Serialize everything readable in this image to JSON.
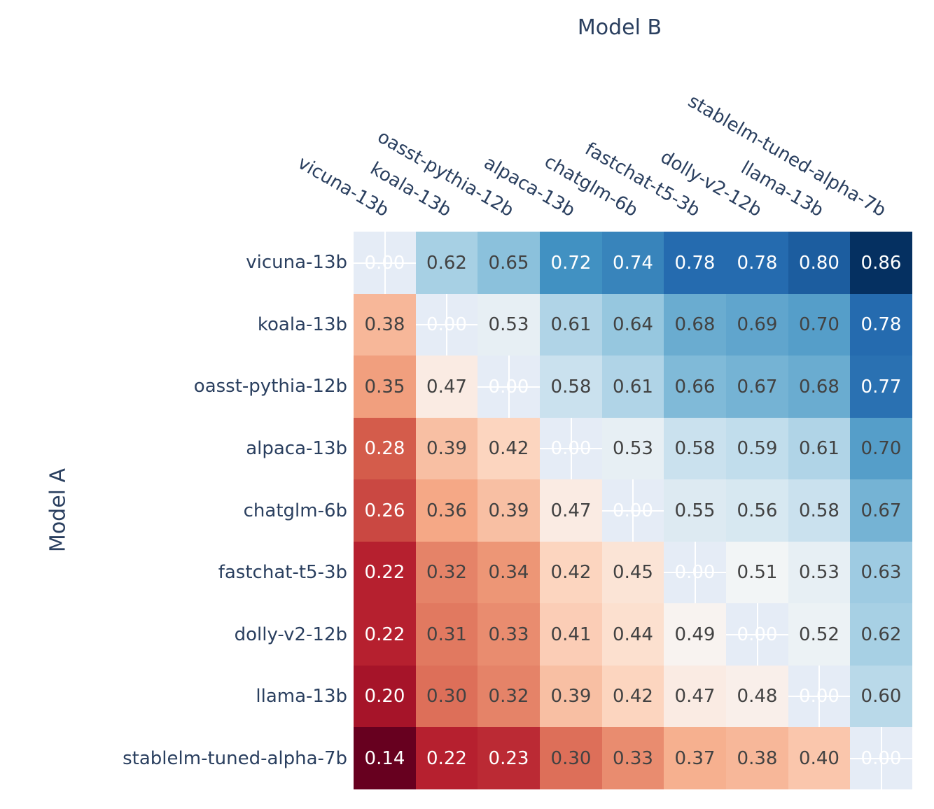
{
  "chart_data": {
    "type": "heatmap",
    "x_axis_title": "Model B",
    "y_axis_title": "Model A",
    "x_labels": [
      "vicuna-13b",
      "koala-13b",
      "oasst-pythia-12b",
      "alpaca-13b",
      "chatglm-6b",
      "fastchat-t5-3b",
      "dolly-v2-12b",
      "llama-13b",
      "stablelm-tuned-alpha-7b"
    ],
    "y_labels": [
      "vicuna-13b",
      "koala-13b",
      "oasst-pythia-12b",
      "alpaca-13b",
      "chatglm-6b",
      "fastchat-t5-3b",
      "dolly-v2-12b",
      "llama-13b",
      "stablelm-tuned-alpha-7b"
    ],
    "matrix": [
      [
        null,
        0.62,
        0.65,
        0.72,
        0.74,
        0.78,
        0.78,
        0.8,
        0.86
      ],
      [
        0.38,
        null,
        0.53,
        0.61,
        0.64,
        0.68,
        0.69,
        0.7,
        0.78
      ],
      [
        0.35,
        0.47,
        null,
        0.58,
        0.61,
        0.66,
        0.67,
        0.68,
        0.77
      ],
      [
        0.28,
        0.39,
        0.42,
        null,
        0.53,
        0.58,
        0.59,
        0.61,
        0.7
      ],
      [
        0.26,
        0.36,
        0.39,
        0.47,
        null,
        0.55,
        0.56,
        0.58,
        0.67
      ],
      [
        0.22,
        0.32,
        0.34,
        0.42,
        0.45,
        null,
        0.51,
        0.53,
        0.63
      ],
      [
        0.22,
        0.31,
        0.33,
        0.41,
        0.44,
        0.49,
        null,
        0.52,
        0.62
      ],
      [
        0.2,
        0.3,
        0.32,
        0.39,
        0.42,
        0.47,
        0.48,
        null,
        0.6
      ],
      [
        0.14,
        0.22,
        0.23,
        0.3,
        0.33,
        0.37,
        0.38,
        0.4,
        null
      ]
    ],
    "diagonal_display": "0.00",
    "value_decimals": 2,
    "zmin": 0.14,
    "zmax": 0.86,
    "colorscale_name": "RdBu",
    "colorscale": [
      "#67001f",
      "#b2182b",
      "#d6604d",
      "#f4a582",
      "#fddbc7",
      "#f7f7f7",
      "#d1e5f0",
      "#92c5de",
      "#4393c3",
      "#2166ac",
      "#053061"
    ],
    "colors": {
      "plot_background": "#e5ecf6",
      "gridline": "#ffffff",
      "axis_label": "#2a3f5f",
      "cell_text_dark": "#424242",
      "cell_text_light": "#ffffff"
    }
  }
}
